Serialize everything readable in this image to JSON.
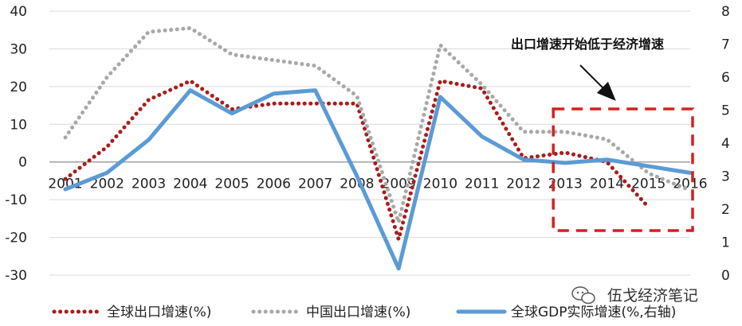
{
  "chart_data": {
    "type": "line",
    "title": "",
    "categories": [
      "2001",
      "2002",
      "2003",
      "2004",
      "2005",
      "2006",
      "2007",
      "2008",
      "2009",
      "2010",
      "2011",
      "2012",
      "2013",
      "2014",
      "2015",
      "2016"
    ],
    "left_axis": {
      "min": -30,
      "max": 40,
      "ticks": [
        40,
        30,
        20,
        10,
        0,
        -10,
        -20,
        -30
      ]
    },
    "right_axis": {
      "min": 0,
      "max": 8,
      "ticks": [
        8,
        7,
        6,
        5,
        4,
        3,
        2,
        1,
        0
      ]
    },
    "series": [
      {
        "name": "全球出口增速(%)",
        "axis": "left",
        "color": "#a81c1c",
        "style": "dotted",
        "values": [
          -4.5,
          4,
          16.5,
          21.5,
          14,
          15.5,
          15.5,
          15.5,
          -20.5,
          21.5,
          19.5,
          1,
          2.5,
          0,
          -12,
          null
        ]
      },
      {
        "name": "中国出口增速(%)",
        "axis": "left",
        "color": "#a8a8a8",
        "style": "dotted",
        "values": [
          6.5,
          22.5,
          34.5,
          35.5,
          28.5,
          27,
          25.5,
          17.5,
          -16,
          31,
          20.5,
          8,
          8,
          6,
          -3,
          -7.5
        ]
      },
      {
        "name": "全球GDP实际增速(%,右轴)",
        "axis": "right",
        "color": "#5b9bd5",
        "style": "solid",
        "values": [
          2.6,
          3.1,
          4.1,
          5.6,
          4.9,
          5.5,
          5.6,
          3.0,
          0.2,
          5.4,
          4.2,
          3.5,
          3.4,
          3.5,
          3.3,
          3.1
        ]
      }
    ],
    "annotation": {
      "text": "出口增速开始低于经济增速",
      "box_years": [
        "2013",
        "2016"
      ]
    },
    "legend_position": "bottom"
  },
  "watermark": {
    "text": "伍戈经济笔记",
    "icon": "wechat-icon"
  }
}
